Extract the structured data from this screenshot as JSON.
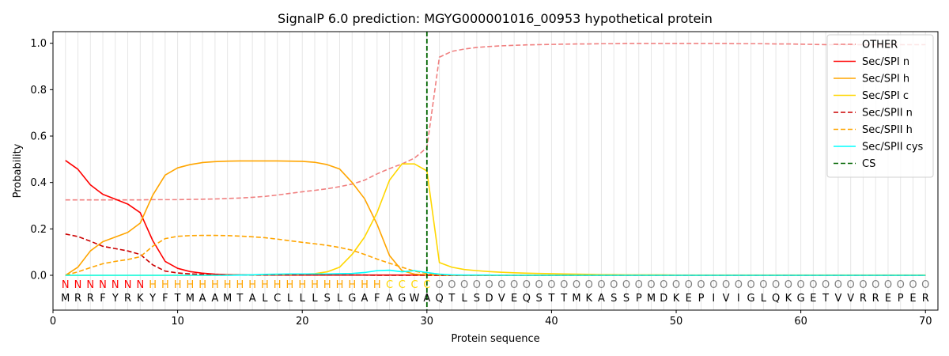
{
  "chart_data": {
    "type": "line",
    "title": "SignalP 6.0 prediction: MGYG000001016_00953 hypothetical protein",
    "xlabel": "Protein sequence",
    "ylabel": "Probability",
    "xlim": [
      0,
      71
    ],
    "ylim": [
      -0.15,
      1.05
    ],
    "xticks": [
      0,
      10,
      20,
      30,
      40,
      50,
      60,
      70
    ],
    "yticks": [
      0.0,
      0.2,
      0.4,
      0.6,
      0.8,
      1.0
    ],
    "grid": "vertical per residue",
    "legend_position": "top-right",
    "cleavage_site": 30,
    "sequence": [
      "M",
      "R",
      "R",
      "F",
      "Y",
      "R",
      "K",
      "Y",
      "F",
      "T",
      "M",
      "A",
      "A",
      "M",
      "T",
      "A",
      "L",
      "C",
      "L",
      "L",
      "L",
      "S",
      "L",
      "G",
      "A",
      "F",
      "A",
      "G",
      "W",
      "A",
      "Q",
      "T",
      "L",
      "S",
      "D",
      "V",
      "E",
      "Q",
      "S",
      "T",
      "T",
      "M",
      "K",
      "A",
      "S",
      "S",
      "P",
      "M",
      "D",
      "K",
      "E",
      "P",
      "I",
      "V",
      "I",
      "G",
      "L",
      "Q",
      "K",
      "G",
      "E",
      "T",
      "V",
      "V",
      "R",
      "R",
      "E",
      "P",
      "E",
      "R"
    ],
    "states": [
      "N",
      "N",
      "N",
      "N",
      "N",
      "N",
      "N",
      "H",
      "H",
      "H",
      "H",
      "H",
      "H",
      "H",
      "H",
      "H",
      "H",
      "H",
      "H",
      "H",
      "H",
      "H",
      "H",
      "H",
      "H",
      "H",
      "C",
      "C",
      "C",
      "C",
      "O",
      "O",
      "O",
      "O",
      "O",
      "O",
      "O",
      "O",
      "O",
      "O",
      "O",
      "O",
      "O",
      "O",
      "O",
      "O",
      "O",
      "O",
      "O",
      "O",
      "O",
      "O",
      "O",
      "O",
      "O",
      "O",
      "O",
      "O",
      "O",
      "O",
      "O",
      "O",
      "O",
      "O",
      "O",
      "O",
      "O",
      "O",
      "O",
      "O"
    ],
    "state_colors": {
      "N": "#ff0000",
      "H": "#ffa500",
      "C": "#ffd700",
      "O": "#808080"
    },
    "series": [
      {
        "name": "OTHER",
        "color": "#f08080",
        "dash": true,
        "values": [
          0.325,
          0.325,
          0.325,
          0.325,
          0.325,
          0.325,
          0.325,
          0.326,
          0.326,
          0.326,
          0.327,
          0.328,
          0.329,
          0.331,
          0.333,
          0.336,
          0.34,
          0.346,
          0.353,
          0.36,
          0.366,
          0.373,
          0.382,
          0.393,
          0.41,
          0.437,
          0.46,
          0.48,
          0.505,
          0.55,
          0.94,
          0.965,
          0.975,
          0.982,
          0.986,
          0.989,
          0.991,
          0.993,
          0.994,
          0.995,
          0.996,
          0.997,
          0.997,
          0.998,
          0.998,
          0.999,
          0.999,
          0.999,
          0.999,
          0.999,
          0.999,
          0.999,
          0.999,
          0.999,
          0.998,
          0.998,
          0.998,
          0.997,
          0.997,
          0.996,
          0.995,
          0.994,
          0.994,
          0.994,
          0.994,
          0.994,
          0.994,
          0.994,
          0.994,
          0.994
        ]
      },
      {
        "name": "Sec/SPI n",
        "color": "#ff0000",
        "dash": false,
        "values": [
          0.495,
          0.457,
          0.39,
          0.349,
          0.328,
          0.307,
          0.27,
          0.15,
          0.06,
          0.03,
          0.016,
          0.009,
          0.005,
          0.003,
          0.002,
          0.001,
          0.001,
          0.001,
          0.001,
          0.001,
          0.001,
          0.001,
          0.001,
          0.001,
          0.001,
          0.001,
          0.001,
          0.001,
          0.001,
          0.001,
          0.0,
          0.0,
          0.0,
          0.0,
          0.0,
          0.0,
          0.0,
          0.0,
          0.0,
          0.0,
          0.0,
          0.0,
          0.0,
          0.0,
          0.0,
          0.0,
          0.0,
          0.0,
          0.0,
          0.0,
          0.0,
          0.0,
          0.0,
          0.0,
          0.0,
          0.0,
          0.0,
          0.0,
          0.0,
          0.0,
          0.0,
          0.0,
          0.0,
          0.0,
          0.0,
          0.0,
          0.0,
          0.0,
          0.0,
          0.0
        ]
      },
      {
        "name": "Sec/SPI h",
        "color": "#ffa500",
        "dash": false,
        "values": [
          0.0,
          0.035,
          0.105,
          0.145,
          0.165,
          0.185,
          0.225,
          0.345,
          0.432,
          0.463,
          0.477,
          0.486,
          0.49,
          0.492,
          0.493,
          0.493,
          0.493,
          0.493,
          0.492,
          0.491,
          0.487,
          0.477,
          0.458,
          0.4,
          0.33,
          0.22,
          0.085,
          0.02,
          0.005,
          0.002,
          0.0,
          0.0,
          0.0,
          0.0,
          0.0,
          0.0,
          0.0,
          0.0,
          0.0,
          0.0,
          0.0,
          0.0,
          0.0,
          0.0,
          0.0,
          0.0,
          0.0,
          0.0,
          0.0,
          0.0,
          0.0,
          0.0,
          0.0,
          0.0,
          0.0,
          0.0,
          0.0,
          0.0,
          0.0,
          0.0,
          0.0,
          0.0,
          0.0,
          0.0,
          0.0,
          0.0,
          0.0,
          0.0,
          0.0,
          0.0
        ]
      },
      {
        "name": "Sec/SPI c",
        "color": "#ffd700",
        "dash": false,
        "values": [
          0.0,
          0.0,
          0.0,
          0.0,
          0.0,
          0.0,
          0.0,
          0.0,
          0.0,
          0.0,
          0.0,
          0.0,
          0.0,
          0.001,
          0.001,
          0.001,
          0.002,
          0.003,
          0.004,
          0.005,
          0.007,
          0.015,
          0.035,
          0.09,
          0.165,
          0.27,
          0.41,
          0.48,
          0.48,
          0.45,
          0.055,
          0.035,
          0.025,
          0.02,
          0.016,
          0.013,
          0.011,
          0.009,
          0.008,
          0.007,
          0.006,
          0.005,
          0.004,
          0.003,
          0.003,
          0.002,
          0.002,
          0.002,
          0.002,
          0.001,
          0.001,
          0.001,
          0.001,
          0.001,
          0.001,
          0.001,
          0.001,
          0.001,
          0.001,
          0.001,
          0.001,
          0.001,
          0.001,
          0.001,
          0.001,
          0.001,
          0.001,
          0.001,
          0.001,
          0.001
        ]
      },
      {
        "name": "Sec/SPII n",
        "color": "#cc0000",
        "dash": true,
        "values": [
          0.178,
          0.167,
          0.147,
          0.125,
          0.115,
          0.105,
          0.09,
          0.045,
          0.018,
          0.01,
          0.006,
          0.004,
          0.002,
          0.001,
          0.001,
          0.001,
          0.001,
          0.001,
          0.001,
          0.001,
          0.001,
          0.001,
          0.001,
          0.001,
          0.001,
          0.0,
          0.0,
          0.0,
          0.0,
          0.0,
          0.0,
          0.0,
          0.0,
          0.0,
          0.0,
          0.0,
          0.0,
          0.0,
          0.0,
          0.0,
          0.0,
          0.0,
          0.0,
          0.0,
          0.0,
          0.0,
          0.0,
          0.0,
          0.0,
          0.0,
          0.0,
          0.0,
          0.0,
          0.0,
          0.0,
          0.0,
          0.0,
          0.0,
          0.0,
          0.0,
          0.0,
          0.0,
          0.0,
          0.0,
          0.0,
          0.0,
          0.0,
          0.0,
          0.0,
          0.0
        ]
      },
      {
        "name": "Sec/SPII h",
        "color": "#ffa500",
        "dash": true,
        "values": [
          0.0,
          0.015,
          0.033,
          0.05,
          0.06,
          0.068,
          0.08,
          0.125,
          0.158,
          0.168,
          0.171,
          0.172,
          0.172,
          0.171,
          0.169,
          0.166,
          0.162,
          0.156,
          0.149,
          0.142,
          0.136,
          0.129,
          0.12,
          0.108,
          0.09,
          0.07,
          0.052,
          0.035,
          0.018,
          0.008,
          0.002,
          0.001,
          0.0,
          0.0,
          0.0,
          0.0,
          0.0,
          0.0,
          0.0,
          0.0,
          0.0,
          0.0,
          0.0,
          0.0,
          0.0,
          0.0,
          0.0,
          0.0,
          0.0,
          0.0,
          0.0,
          0.0,
          0.0,
          0.0,
          0.0,
          0.0,
          0.0,
          0.0,
          0.0,
          0.0,
          0.0,
          0.0,
          0.0,
          0.0,
          0.0,
          0.0,
          0.0,
          0.0,
          0.0,
          0.0
        ]
      },
      {
        "name": "Sec/SPII cys",
        "color": "#00ffff",
        "dash": false,
        "values": [
          0.0,
          0.0,
          0.0,
          0.0,
          0.0,
          0.0,
          0.0,
          0.0,
          0.0,
          0.0,
          0.0,
          0.0,
          0.0,
          0.0,
          0.001,
          0.002,
          0.004,
          0.005,
          0.006,
          0.006,
          0.006,
          0.006,
          0.007,
          0.008,
          0.012,
          0.02,
          0.022,
          0.015,
          0.02,
          0.012,
          0.005,
          0.002,
          0.001,
          0.001,
          0.001,
          0.0,
          0.0,
          0.0,
          0.0,
          0.0,
          0.0,
          0.0,
          0.0,
          0.0,
          0.0,
          0.0,
          0.0,
          0.0,
          0.0,
          0.0,
          0.0,
          0.0,
          0.0,
          0.0,
          0.0,
          0.0,
          0.0,
          0.0,
          0.0,
          0.0,
          0.0,
          0.0,
          0.0,
          0.0,
          0.0,
          0.0,
          0.0,
          0.0,
          0.0,
          0.0
        ]
      }
    ],
    "cs_legend": {
      "name": "CS",
      "color": "#006400",
      "dash": true
    }
  }
}
